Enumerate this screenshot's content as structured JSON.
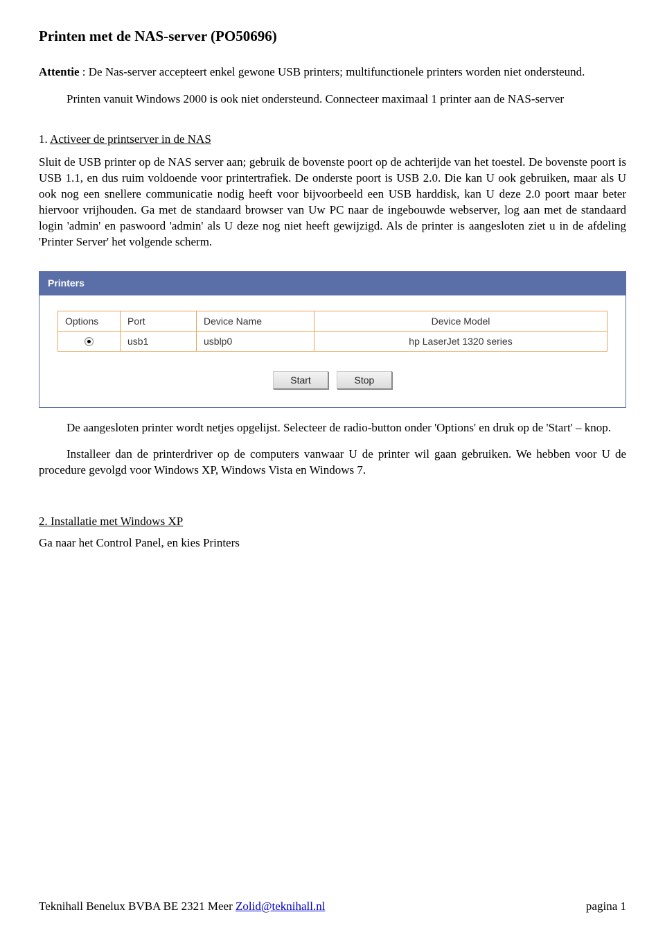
{
  "title": "Printen met de NAS-server (PO50696)",
  "attentie_label": "Attentie",
  "attentie_text": " : De Nas-server accepteert enkel gewone USB printers; multifunctionele printers worden niet ondersteund.",
  "para2": "Printen vanuit Windows 2000 is ook niet ondersteund. Connecteer maximaal 1 printer aan de NAS-server",
  "step1_num": "1. ",
  "step1_title": "Activeer de printserver in de NAS",
  "step1_body": "Sluit de USB printer op de NAS server aan; gebruik de bovenste poort op de achterijde van het toestel. De bovenste poort is USB 1.1, en dus ruim voldoende voor printertrafiek. De onderste poort is USB 2.0. Die kan U ook gebruiken, maar als U ook nog een snellere communicatie nodig heeft voor bijvoorbeeld een USB harddisk, kan U deze 2.0 poort maar beter hiervoor vrijhouden. Ga met de standaard browser van Uw PC naar de ingebouwde webserver, log aan met de standaard login 'admin' en paswoord 'admin' als U deze nog niet heeft gewijzigd. Als de printer is aangesloten ziet u in de afdeling 'Printer Server' het volgende scherm.",
  "panel": {
    "header": "Printers",
    "columns": {
      "options": "Options",
      "port": "Port",
      "device": "Device Name",
      "model": "Device Model"
    },
    "row": {
      "port": "usb1",
      "device": "usblp0",
      "model": "hp LaserJet 1320 series"
    },
    "buttons": {
      "start": "Start",
      "stop": "Stop"
    }
  },
  "para_after_panel": "De aangesloten printer wordt netjes opgelijst. Selecteer de radio-button onder 'Options' en druk op de 'Start' – knop.",
  "para_install": "Installeer dan de printerdriver op de computers vanwaar U de printer wil gaan gebruiken. We hebben voor U de procedure gevolgd voor Windows XP, Windows Vista en Windows 7.",
  "section2_num": "2. ",
  "section2_title": "Installatie met Windows XP",
  "section2_body": "Ga naar het Control Panel, en kies Printers",
  "footer": {
    "company": "Teknihall Benelux BVBA   BE 2321 Meer  ",
    "email": "Zolid@teknihall.nl",
    "page": "pagina 1"
  }
}
